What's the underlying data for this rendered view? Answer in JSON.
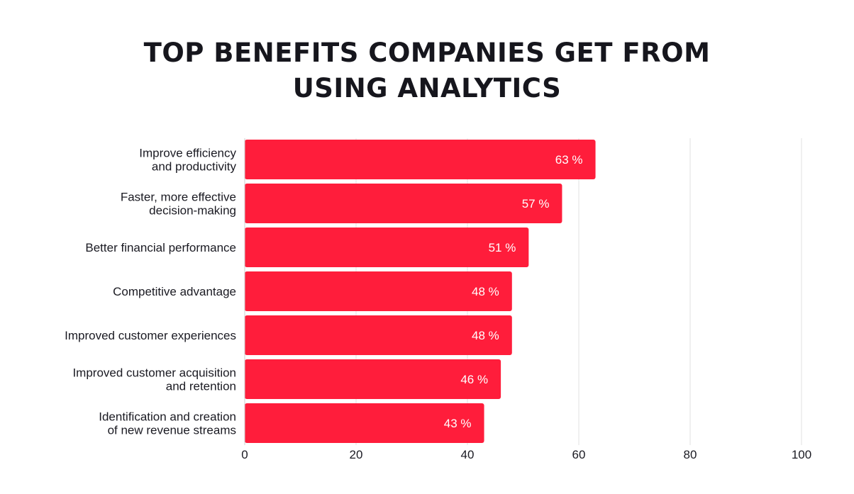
{
  "chart_data": {
    "type": "bar",
    "orientation": "horizontal",
    "title_lines": [
      "TOP BENEFITS COMPANIES GET FROM",
      "USING ANALYTICS"
    ],
    "categories": [
      [
        "Improve efficiency",
        "and productivity"
      ],
      [
        "Faster, more effective",
        "decision-making"
      ],
      [
        "Better financial performance"
      ],
      [
        "Competitive advantage"
      ],
      [
        "Improved customer experiences"
      ],
      [
        "Improved customer acquisition",
        "and retention"
      ],
      [
        "Identification and creation",
        "of new revenue streams"
      ]
    ],
    "values": [
      63,
      57,
      51,
      48,
      48,
      46,
      43
    ],
    "value_labels": [
      "63 %",
      "57 %",
      "51 %",
      "48 %",
      "48 %",
      "46 %",
      "43 %"
    ],
    "xlim": [
      0,
      100
    ],
    "xticks": [
      "0",
      "20",
      "40",
      "60",
      "80",
      "100"
    ],
    "grid": true,
    "bar_color": "#ff1d3b",
    "grid_color": "#e2e2e2",
    "xlabel": "",
    "ylabel": ""
  }
}
